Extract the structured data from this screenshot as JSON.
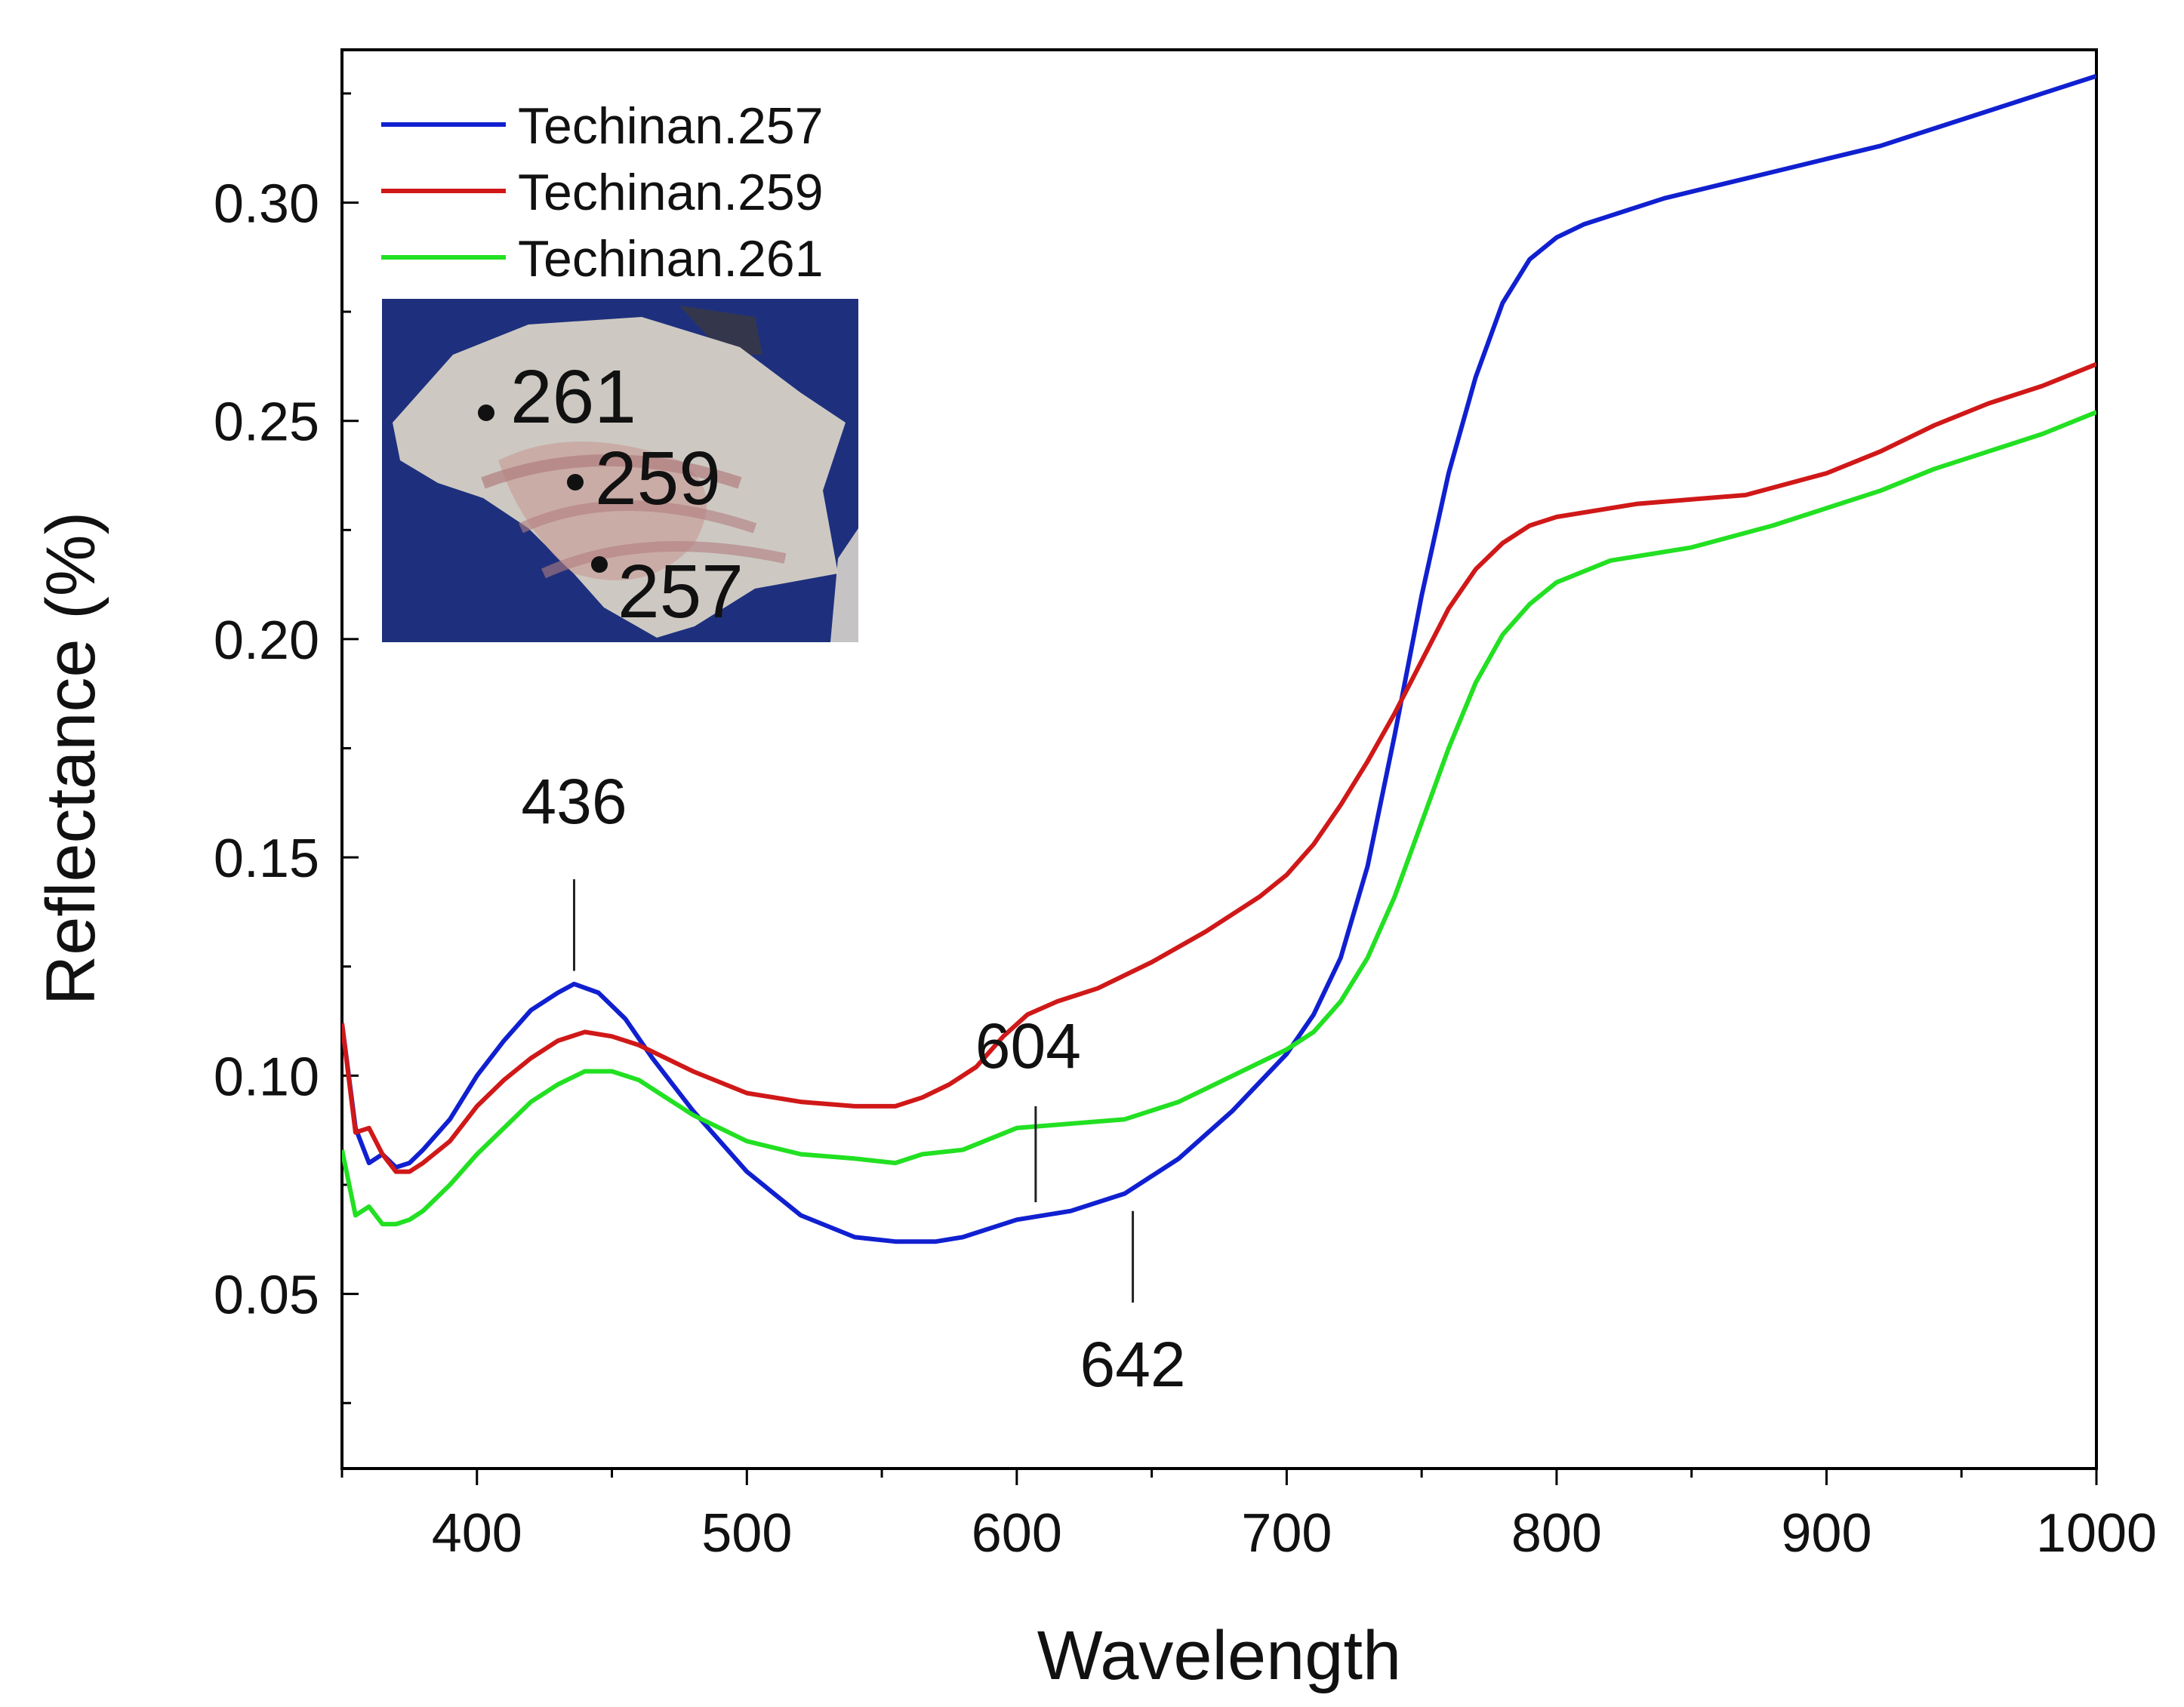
{
  "chart_data": {
    "type": "line",
    "title": "",
    "xlabel": "Wavelength",
    "ylabel": "Reflectance (%)",
    "xlim": [
      350,
      1000
    ],
    "ylim": [
      0.01,
      0.335
    ],
    "xticks": [
      400,
      500,
      600,
      700,
      800,
      900,
      1000
    ],
    "xtick_labels": [
      "400",
      "500",
      "600",
      "700",
      "800",
      "900",
      "1000"
    ],
    "yticks": [
      0.05,
      0.1,
      0.15,
      0.2,
      0.25,
      0.3
    ],
    "ytick_labels": [
      "0.05",
      "0.10",
      "0.15",
      "0.20",
      "0.25",
      "0.30"
    ],
    "grid": false,
    "legend_position": "top-left",
    "series": [
      {
        "name": "Techinan.257",
        "color": "#1020d0",
        "x": [
          350,
          355,
          360,
          365,
          370,
          375,
          380,
          390,
          400,
          410,
          420,
          430,
          436,
          445,
          455,
          465,
          480,
          500,
          520,
          540,
          555,
          570,
          580,
          600,
          620,
          640,
          660,
          680,
          700,
          710,
          720,
          730,
          740,
          750,
          760,
          770,
          780,
          790,
          800,
          810,
          820,
          840,
          860,
          880,
          900,
          920,
          940,
          960,
          980,
          1000
        ],
        "y": [
          0.112,
          0.088,
          0.08,
          0.082,
          0.079,
          0.08,
          0.083,
          0.09,
          0.1,
          0.108,
          0.115,
          0.119,
          0.121,
          0.119,
          0.113,
          0.104,
          0.092,
          0.078,
          0.068,
          0.063,
          0.062,
          0.062,
          0.063,
          0.067,
          0.069,
          0.073,
          0.081,
          0.092,
          0.105,
          0.114,
          0.127,
          0.148,
          0.178,
          0.21,
          0.238,
          0.26,
          0.277,
          0.287,
          0.292,
          0.295,
          0.297,
          0.301,
          0.304,
          0.307,
          0.31,
          0.313,
          0.317,
          0.321,
          0.325,
          0.329
        ]
      },
      {
        "name": "Techinan.259",
        "color": "#d01818",
        "x": [
          350,
          355,
          360,
          365,
          370,
          375,
          380,
          390,
          400,
          410,
          420,
          430,
          440,
          450,
          460,
          470,
          480,
          500,
          520,
          540,
          555,
          565,
          575,
          585,
          595,
          604,
          615,
          630,
          650,
          670,
          690,
          700,
          710,
          720,
          730,
          740,
          750,
          760,
          770,
          780,
          790,
          800,
          810,
          830,
          850,
          870,
          900,
          920,
          940,
          960,
          980,
          1000
        ],
        "y": [
          0.112,
          0.087,
          0.088,
          0.082,
          0.078,
          0.078,
          0.08,
          0.085,
          0.093,
          0.099,
          0.104,
          0.108,
          0.11,
          0.109,
          0.107,
          0.104,
          0.101,
          0.096,
          0.094,
          0.093,
          0.093,
          0.095,
          0.098,
          0.102,
          0.109,
          0.114,
          0.117,
          0.12,
          0.126,
          0.133,
          0.141,
          0.146,
          0.153,
          0.162,
          0.172,
          0.183,
          0.195,
          0.207,
          0.216,
          0.222,
          0.226,
          0.228,
          0.229,
          0.231,
          0.232,
          0.233,
          0.238,
          0.243,
          0.249,
          0.254,
          0.258,
          0.263
        ]
      },
      {
        "name": "Techinan.261",
        "color": "#22e022",
        "x": [
          350,
          355,
          360,
          365,
          370,
          375,
          380,
          390,
          400,
          410,
          420,
          430,
          440,
          450,
          460,
          470,
          480,
          500,
          520,
          540,
          555,
          565,
          580,
          600,
          620,
          640,
          660,
          680,
          700,
          710,
          720,
          730,
          740,
          750,
          760,
          770,
          780,
          790,
          800,
          820,
          850,
          880,
          900,
          920,
          940,
          960,
          980,
          1000
        ],
        "y": [
          0.083,
          0.068,
          0.07,
          0.066,
          0.066,
          0.067,
          0.069,
          0.075,
          0.082,
          0.088,
          0.094,
          0.098,
          0.101,
          0.101,
          0.099,
          0.095,
          0.091,
          0.085,
          0.082,
          0.081,
          0.08,
          0.082,
          0.083,
          0.088,
          0.089,
          0.09,
          0.094,
          0.1,
          0.106,
          0.11,
          0.117,
          0.127,
          0.141,
          0.158,
          0.175,
          0.19,
          0.201,
          0.208,
          0.213,
          0.218,
          0.221,
          0.226,
          0.23,
          0.234,
          0.239,
          0.243,
          0.247,
          0.252
        ]
      }
    ],
    "annotations": [
      {
        "text": "436",
        "x": 436,
        "line_y": [
          0.124,
          0.145
        ],
        "label_y": 0.163,
        "label_dir": "above"
      },
      {
        "text": "604",
        "x": 607,
        "line_y": [
          0.071,
          0.093
        ],
        "label_y": 0.107,
        "label_dir": "above"
      },
      {
        "text": "642",
        "x": 643,
        "line_y": [
          0.048,
          0.069
        ],
        "label_y": 0.034,
        "label_dir": "below"
      }
    ]
  },
  "inset_photo": {
    "description_labels": [
      "261",
      "259",
      "257"
    ]
  }
}
